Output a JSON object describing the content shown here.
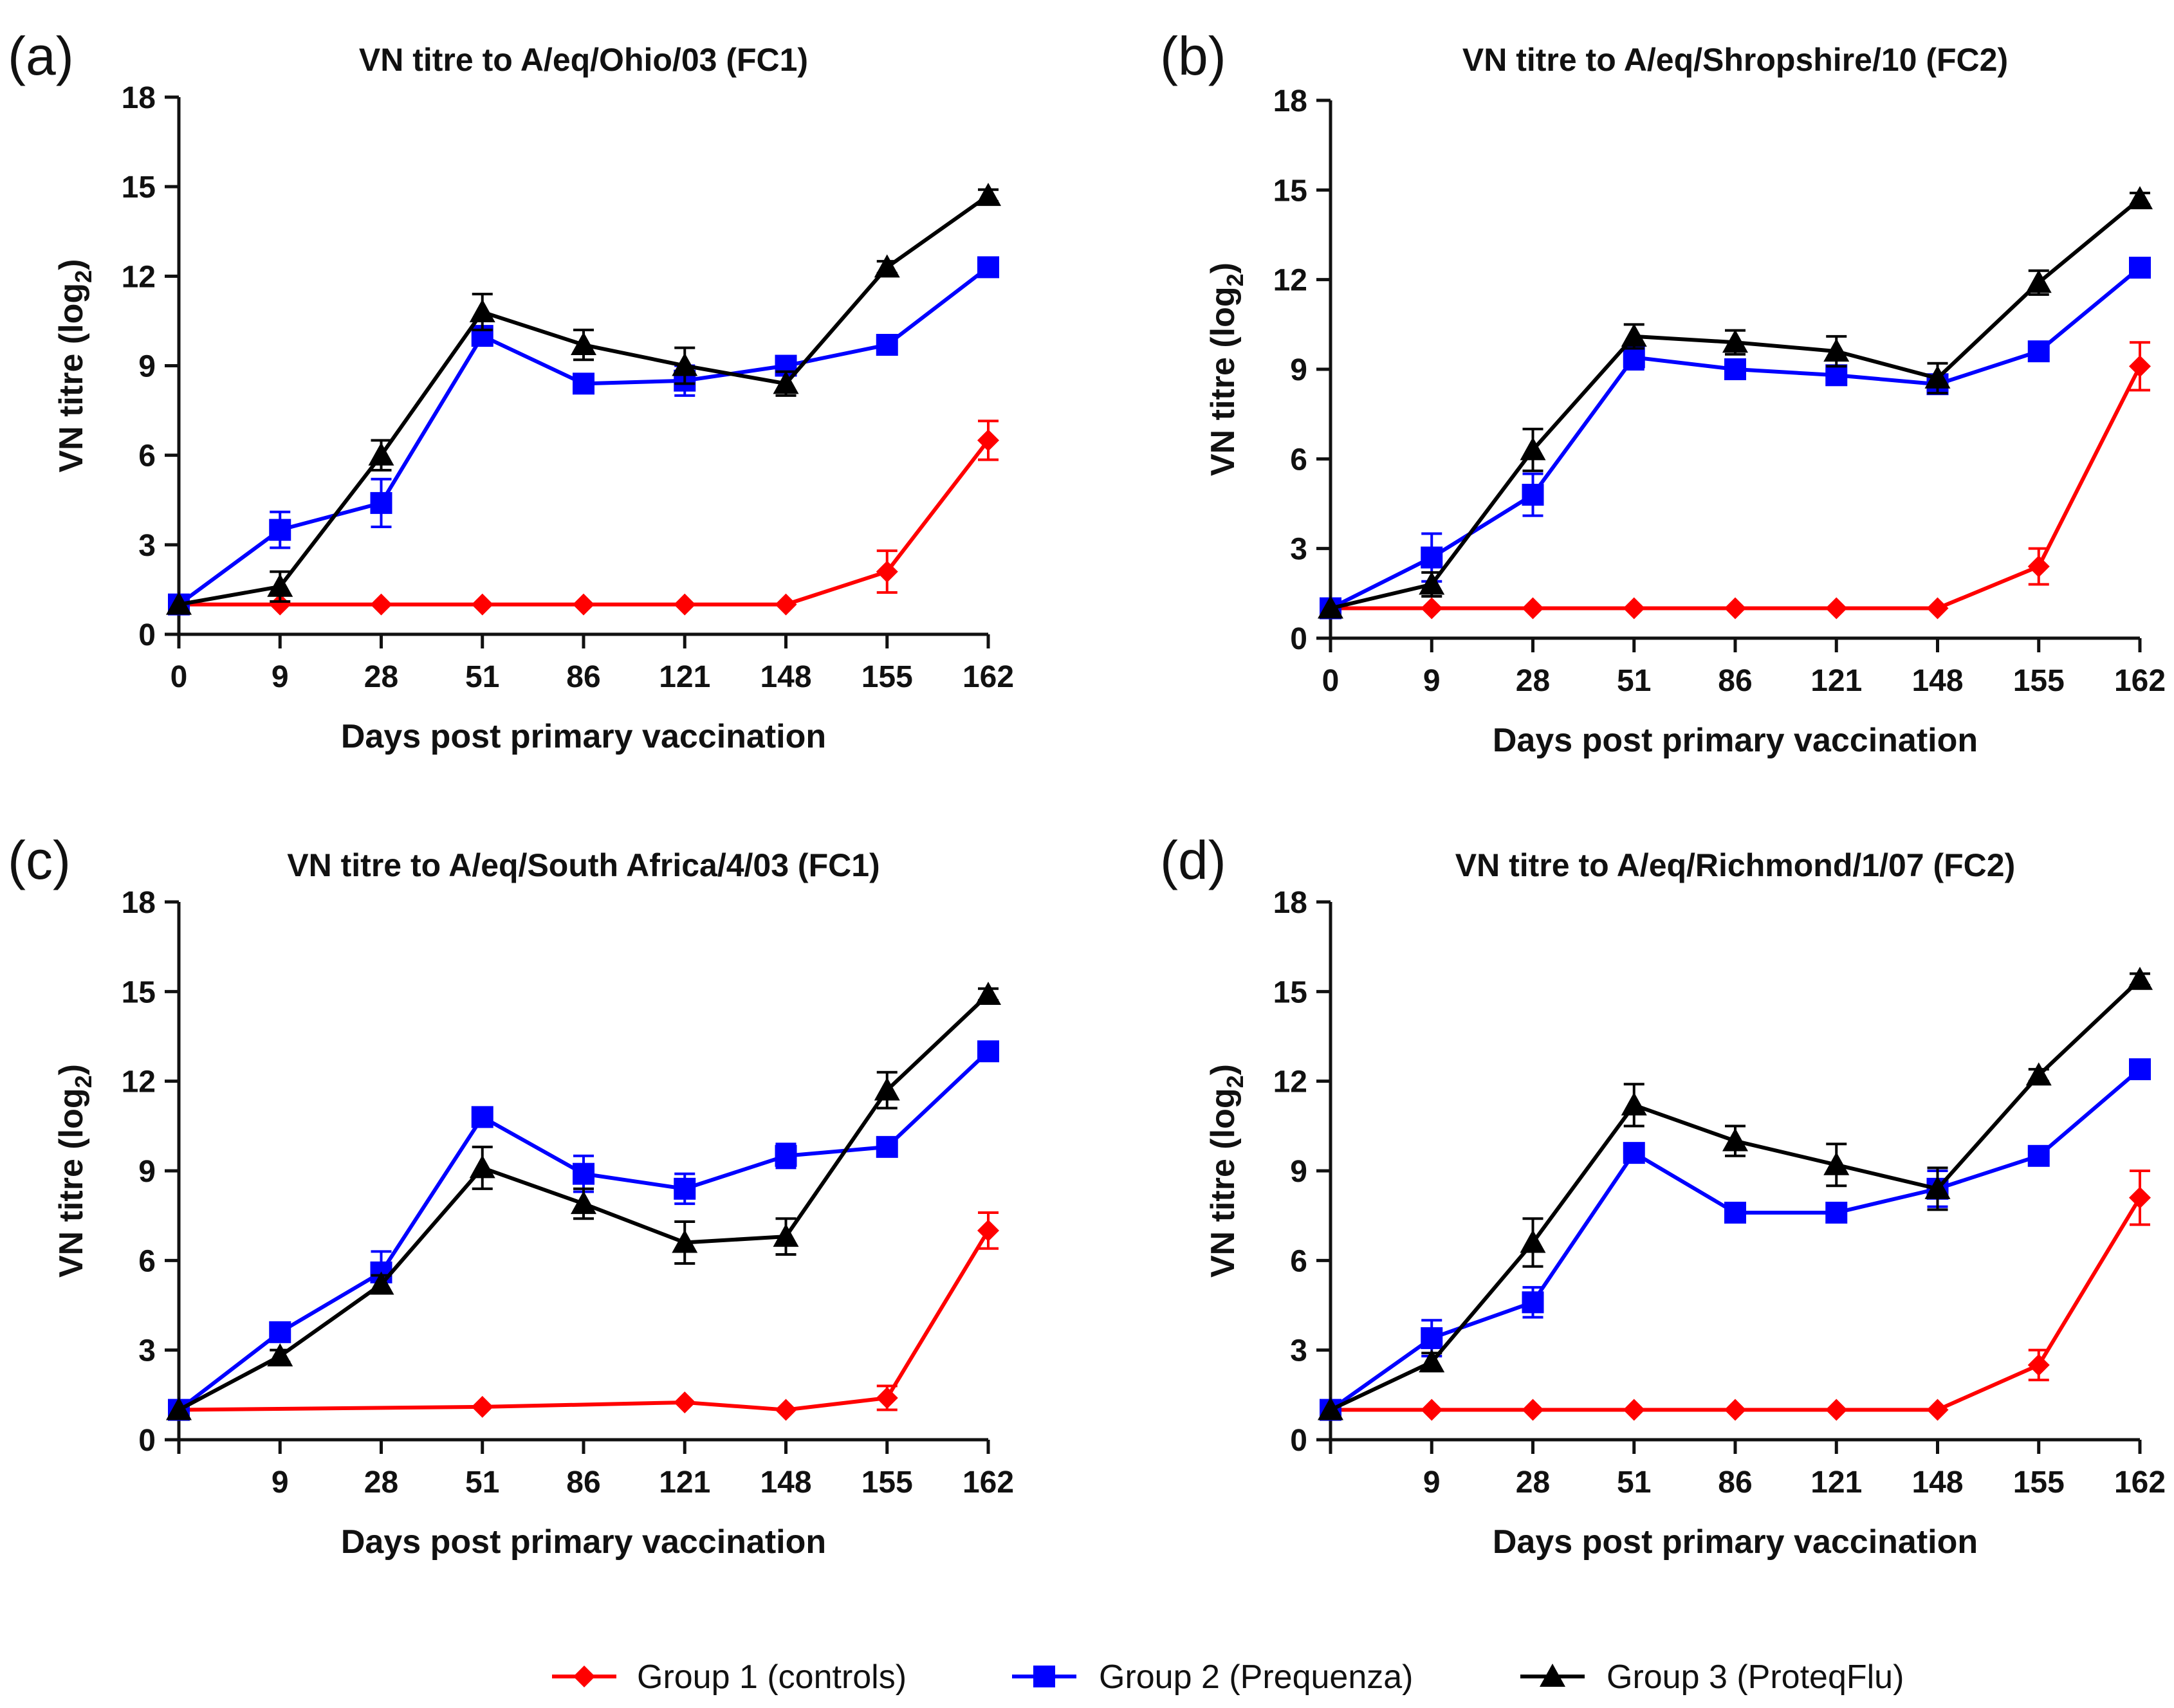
{
  "chart_data": [
    {
      "type": "line",
      "panel_label": "(a)",
      "title": "VN titre to  A/eq/Ohio/03 (FC1)",
      "xlabel": "Days post primary vaccination",
      "ylabel_main": "VN titre (log",
      "ylabel_sub": "2",
      "ylabel_close": ")",
      "categories": [
        "0",
        "9",
        "28",
        "51",
        "86",
        "121",
        "148",
        "155",
        "162"
      ],
      "ylim": [
        0,
        18
      ],
      "yticks": [
        0,
        3,
        6,
        9,
        12,
        15,
        18
      ],
      "grid": false,
      "series": [
        {
          "name": "Group 1 (controls)",
          "values": [
            1,
            1,
            1,
            1,
            1,
            1,
            1,
            2.1,
            6.5
          ],
          "errors": [
            0,
            0,
            0,
            0,
            0,
            0,
            0,
            0.7,
            0.65
          ]
        },
        {
          "name": "Group 2 (Prequenza)",
          "values": [
            1,
            3.5,
            4.4,
            10.0,
            8.4,
            8.5,
            9.0,
            9.7,
            12.3
          ],
          "errors": [
            0,
            0.6,
            0.8,
            0.3,
            0.3,
            0.5,
            0.3,
            0.3,
            0.3
          ]
        },
        {
          "name": "Group 3 (ProteqFlu)",
          "values": [
            1,
            1.6,
            6.0,
            10.8,
            9.7,
            9.0,
            8.4,
            12.3,
            14.7
          ],
          "errors": [
            0,
            0.5,
            0.5,
            0.6,
            0.5,
            0.6,
            0.4,
            0.2,
            0.2
          ]
        }
      ]
    },
    {
      "type": "line",
      "panel_label": "(b)",
      "title": "VN titre to A/eq/Shropshire/10 (FC2)",
      "xlabel": "Days post primary vaccination",
      "ylabel_main": "VN titre (log",
      "ylabel_sub": "2",
      "ylabel_close": ")",
      "categories": [
        "0",
        "9",
        "28",
        "51",
        "86",
        "121",
        "148",
        "155",
        "162"
      ],
      "ylim": [
        0,
        18
      ],
      "yticks": [
        0,
        3,
        6,
        9,
        12,
        15,
        18
      ],
      "grid": false,
      "series": [
        {
          "name": "Group 1 (controls)",
          "values": [
            1,
            1,
            1,
            1,
            1,
            1,
            1,
            2.4,
            9.1
          ],
          "errors": [
            0,
            0,
            0,
            0,
            0,
            0,
            0,
            0.6,
            0.8
          ]
        },
        {
          "name": "Group 2 (Prequenza)",
          "values": [
            1,
            2.7,
            4.8,
            9.4,
            9.0,
            8.8,
            8.5,
            9.6,
            12.4
          ],
          "errors": [
            0,
            0.8,
            0.7,
            0.4,
            0.3,
            0.3,
            0.3,
            0.3,
            0.3
          ]
        },
        {
          "name": "Group 3 (ProteqFlu)",
          "values": [
            1,
            1.8,
            6.3,
            10.1,
            9.9,
            9.6,
            8.7,
            11.9,
            14.7
          ],
          "errors": [
            0,
            0.4,
            0.7,
            0.4,
            0.4,
            0.5,
            0.5,
            0.4,
            0.2
          ]
        }
      ]
    },
    {
      "type": "line",
      "panel_label": "(c)",
      "title": "VN titre to A/eq/South Africa/4/03 (FC1)",
      "xlabel": "Days post primary vaccination",
      "ylabel_main": "VN titre (log",
      "ylabel_sub": "2",
      "ylabel_close": ")",
      "categories": [
        "",
        "9",
        "28",
        "51",
        "86",
        "121",
        "148",
        "155",
        "162"
      ],
      "ylim": [
        0,
        18
      ],
      "yticks": [
        0,
        3,
        6,
        9,
        12,
        15,
        18
      ],
      "grid": false,
      "series": [
        {
          "name": "Group 1 (controls)",
          "values": [
            1,
            null,
            null,
            1.1,
            null,
            1.25,
            1.0,
            1.4,
            7.0
          ],
          "errors": [
            0,
            0,
            0,
            0,
            0,
            0,
            0,
            0.4,
            0.6
          ]
        },
        {
          "name": "Group 2 (Prequenza)",
          "values": [
            1,
            3.6,
            5.6,
            10.8,
            8.9,
            8.4,
            9.5,
            9.8,
            13.0
          ],
          "errors": [
            0,
            0.3,
            0.7,
            0.3,
            0.6,
            0.5,
            0.4,
            0.3,
            0.3
          ]
        },
        {
          "name": "Group 3 (ProteqFlu)",
          "values": [
            1,
            2.8,
            5.2,
            9.1,
            7.9,
            6.6,
            6.8,
            11.7,
            14.9
          ],
          "errors": [
            0,
            0.2,
            0.3,
            0.7,
            0.5,
            0.7,
            0.6,
            0.6,
            0.2
          ]
        }
      ]
    },
    {
      "type": "line",
      "panel_label": "(d)",
      "title": "VN titre to A/eq/Richmond/1/07 (FC2)",
      "xlabel": "Days post primary vaccination",
      "ylabel_main": "VN titre (log",
      "ylabel_sub": "2",
      "ylabel_close": ")",
      "categories": [
        "",
        "9",
        "28",
        "51",
        "86",
        "121",
        "148",
        "155",
        "162"
      ],
      "ylim": [
        0,
        18
      ],
      "yticks": [
        0,
        3,
        6,
        9,
        12,
        15,
        18
      ],
      "grid": false,
      "series": [
        {
          "name": "Group 1 (controls)",
          "values": [
            1,
            1,
            1,
            1,
            1,
            1,
            1,
            2.5,
            8.1
          ],
          "errors": [
            0,
            0,
            0,
            0,
            0,
            0,
            0,
            0.5,
            0.9
          ]
        },
        {
          "name": "Group 2 (Prequenza)",
          "values": [
            1,
            3.4,
            4.6,
            9.6,
            7.6,
            7.6,
            8.4,
            9.5,
            12.4
          ],
          "errors": [
            0,
            0.6,
            0.5,
            0.3,
            0.2,
            0.2,
            0.6,
            0.3,
            0.3
          ]
        },
        {
          "name": "Group 3 (ProteqFlu)",
          "values": [
            1,
            2.6,
            6.6,
            11.2,
            10.0,
            9.2,
            8.4,
            12.2,
            15.4
          ],
          "errors": [
            0,
            0.3,
            0.8,
            0.7,
            0.5,
            0.7,
            0.7,
            0.2,
            0.2
          ]
        }
      ]
    }
  ],
  "legend": {
    "placement": "bottom-center",
    "entries": [
      {
        "name": "Group 1 (controls)",
        "color": "#ff0000",
        "marker": "diamond"
      },
      {
        "name": "Group 2 (Prequenza)",
        "color": "#0000ff",
        "marker": "square"
      },
      {
        "name": "Group 3 (ProteqFlu)",
        "color": "#000000",
        "marker": "triangle"
      }
    ]
  },
  "colors": {
    "group1": "#ff0000",
    "group2": "#0000ff",
    "group3": "#000000",
    "axis": "#111111"
  }
}
